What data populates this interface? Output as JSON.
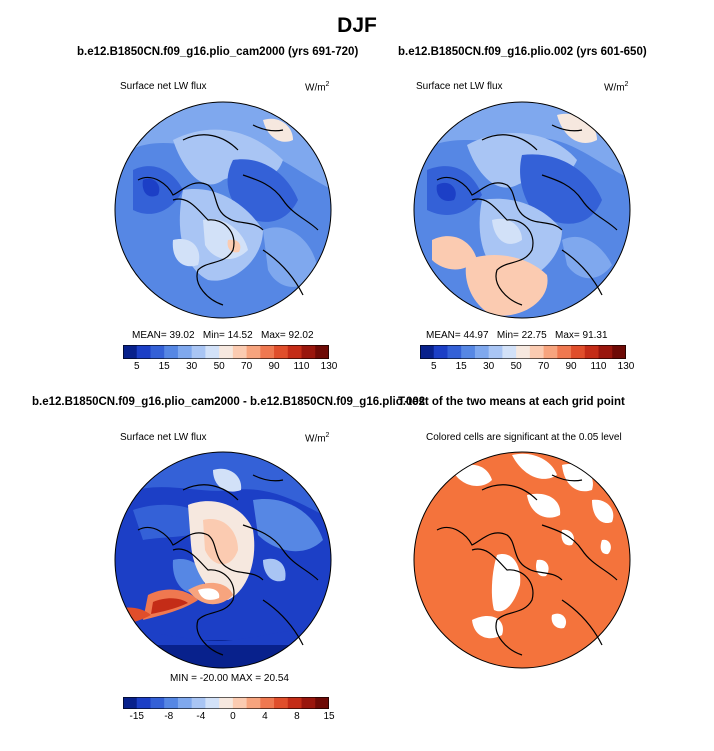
{
  "figure": {
    "title": "DJF"
  },
  "panels": {
    "top_left": {
      "title": "b.e12.B1850CN.f09_g16.plio_cam2000 (yrs 691-720)",
      "variable": "Surface net LW flux",
      "units": "W/m",
      "units_exp": "2",
      "stats": {
        "mean_label": "MEAN=",
        "mean": "39.02",
        "min_label": "Min=",
        "min": "14.52",
        "max_label": "Max=",
        "max": "92.02"
      }
    },
    "top_right": {
      "title": "b.e12.B1850CN.f09_g16.plio.002 (yrs 601-650)",
      "variable": "Surface net LW flux",
      "units": "W/m",
      "units_exp": "2",
      "stats": {
        "mean_label": "MEAN=",
        "mean": "44.97",
        "min_label": "Min=",
        "min": "22.75",
        "max_label": "Max=",
        "max": "91.31"
      }
    },
    "bottom_left": {
      "title": "b.e12.B1850CN.f09_g16.plio_cam2000 - b.e12.B1850CN.f09_g16.plio.002",
      "variable": "Surface net LW flux",
      "units": "W/m",
      "units_exp": "2",
      "stats": "MIN = -20.00 MAX =  20.54"
    },
    "bottom_right": {
      "title": "T-test of the two means at each grid point",
      "subtitle": "Colored cells are significant at the 0.05 level"
    }
  },
  "chart_data": [
    {
      "type": "heatmap",
      "projection": "north polar stereographic",
      "title": "b.e12.B1850CN.f09_g16.plio_cam2000 (yrs 691-720)",
      "variable": "Surface net LW flux",
      "units": "W/m2",
      "mean": 39.02,
      "min": 14.52,
      "max": 92.02,
      "colorbar_ticks": [
        "5",
        "15",
        "30",
        "50",
        "70",
        "90",
        "110",
        "130"
      ],
      "colorbar_colors": [
        "#08218c",
        "#1c3fc6",
        "#3461d7",
        "#5687e4",
        "#7fa8ee",
        "#a9c5f4",
        "#d2e1f8",
        "#f6e8df",
        "#fbcbb1",
        "#f7a47e",
        "#ef7850",
        "#e04e2b",
        "#c42c17",
        "#99160d",
        "#6e0a06"
      ]
    },
    {
      "type": "heatmap",
      "projection": "north polar stereographic",
      "title": "b.e12.B1850CN.f09_g16.plio.002 (yrs 601-650)",
      "variable": "Surface net LW flux",
      "units": "W/m2",
      "mean": 44.97,
      "min": 22.75,
      "max": 91.31,
      "colorbar_ticks": [
        "5",
        "15",
        "30",
        "50",
        "70",
        "90",
        "110",
        "130"
      ],
      "colorbar_colors": [
        "#08218c",
        "#1c3fc6",
        "#3461d7",
        "#5687e4",
        "#7fa8ee",
        "#a9c5f4",
        "#d2e1f8",
        "#f6e8df",
        "#fbcbb1",
        "#f7a47e",
        "#ef7850",
        "#e04e2b",
        "#c42c17",
        "#99160d",
        "#6e0a06"
      ]
    },
    {
      "type": "heatmap",
      "projection": "north polar stereographic",
      "title": "difference (plio_cam2000 - plio.002)",
      "variable": "Surface net LW flux",
      "units": "W/m2",
      "min": -20.0,
      "max": 20.54,
      "colorbar_ticks": [
        "-15",
        "-8",
        "-4",
        "0",
        "4",
        "8",
        "15"
      ],
      "colorbar_colors": [
        "#08218c",
        "#1c3fc6",
        "#3461d7",
        "#5687e4",
        "#7fa8ee",
        "#a9c5f4",
        "#d2e1f8",
        "#f6e8df",
        "#fbcbb1",
        "#f7a47e",
        "#ef7850",
        "#e04e2b",
        "#c42c17",
        "#99160d",
        "#6e0a06"
      ]
    },
    {
      "type": "heatmap",
      "projection": "north polar stereographic",
      "title": "T-test of the two means at each grid point",
      "significance_level": 0.05,
      "significant_color": "#f4733c",
      "not_significant_color": "#ffffff"
    }
  ]
}
